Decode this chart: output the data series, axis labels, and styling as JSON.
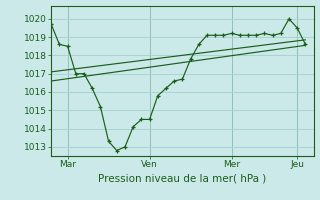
{
  "bg_color": "#cce9e9",
  "grid_color": "#aad4d4",
  "line_color": "#1a5e1a",
  "title": "Pression niveau de la mer( hPa )",
  "xlabel_day_labels": [
    "Mar",
    "Ven",
    "Mer",
    "Jeu"
  ],
  "xlabel_day_positions": [
    0.5,
    3.0,
    5.5,
    7.5
  ],
  "ylim": [
    1012.5,
    1020.7
  ],
  "yticks": [
    1013,
    1014,
    1015,
    1016,
    1017,
    1018,
    1019,
    1020
  ],
  "line1_x": [
    0.0,
    0.25,
    0.5,
    0.75,
    1.0,
    1.25,
    1.5,
    1.75,
    2.0,
    2.25,
    2.5,
    2.75,
    3.0,
    3.25,
    3.5,
    3.75,
    4.0,
    4.25,
    4.5,
    4.75,
    5.0,
    5.25,
    5.5,
    5.75,
    6.0,
    6.25,
    6.5,
    6.75,
    7.0,
    7.25,
    7.5,
    7.75
  ],
  "line1_y": [
    1019.7,
    1018.6,
    1018.5,
    1017.0,
    1017.0,
    1016.2,
    1015.2,
    1013.3,
    1012.8,
    1013.0,
    1014.1,
    1014.5,
    1014.5,
    1015.8,
    1016.2,
    1016.6,
    1016.7,
    1017.8,
    1018.6,
    1019.1,
    1019.1,
    1019.1,
    1019.2,
    1019.1,
    1019.1,
    1019.1,
    1019.2,
    1019.1,
    1019.2,
    1020.0,
    1019.5,
    1018.6
  ],
  "line2_x": [
    0.0,
    7.75
  ],
  "line2_y": [
    1017.1,
    1018.85
  ],
  "line3_x": [
    0.0,
    7.75
  ],
  "line3_y": [
    1016.6,
    1018.55
  ],
  "vline_positions": [
    0.5,
    3.0,
    5.5,
    7.5
  ],
  "xlim": [
    0.0,
    8.0
  ]
}
